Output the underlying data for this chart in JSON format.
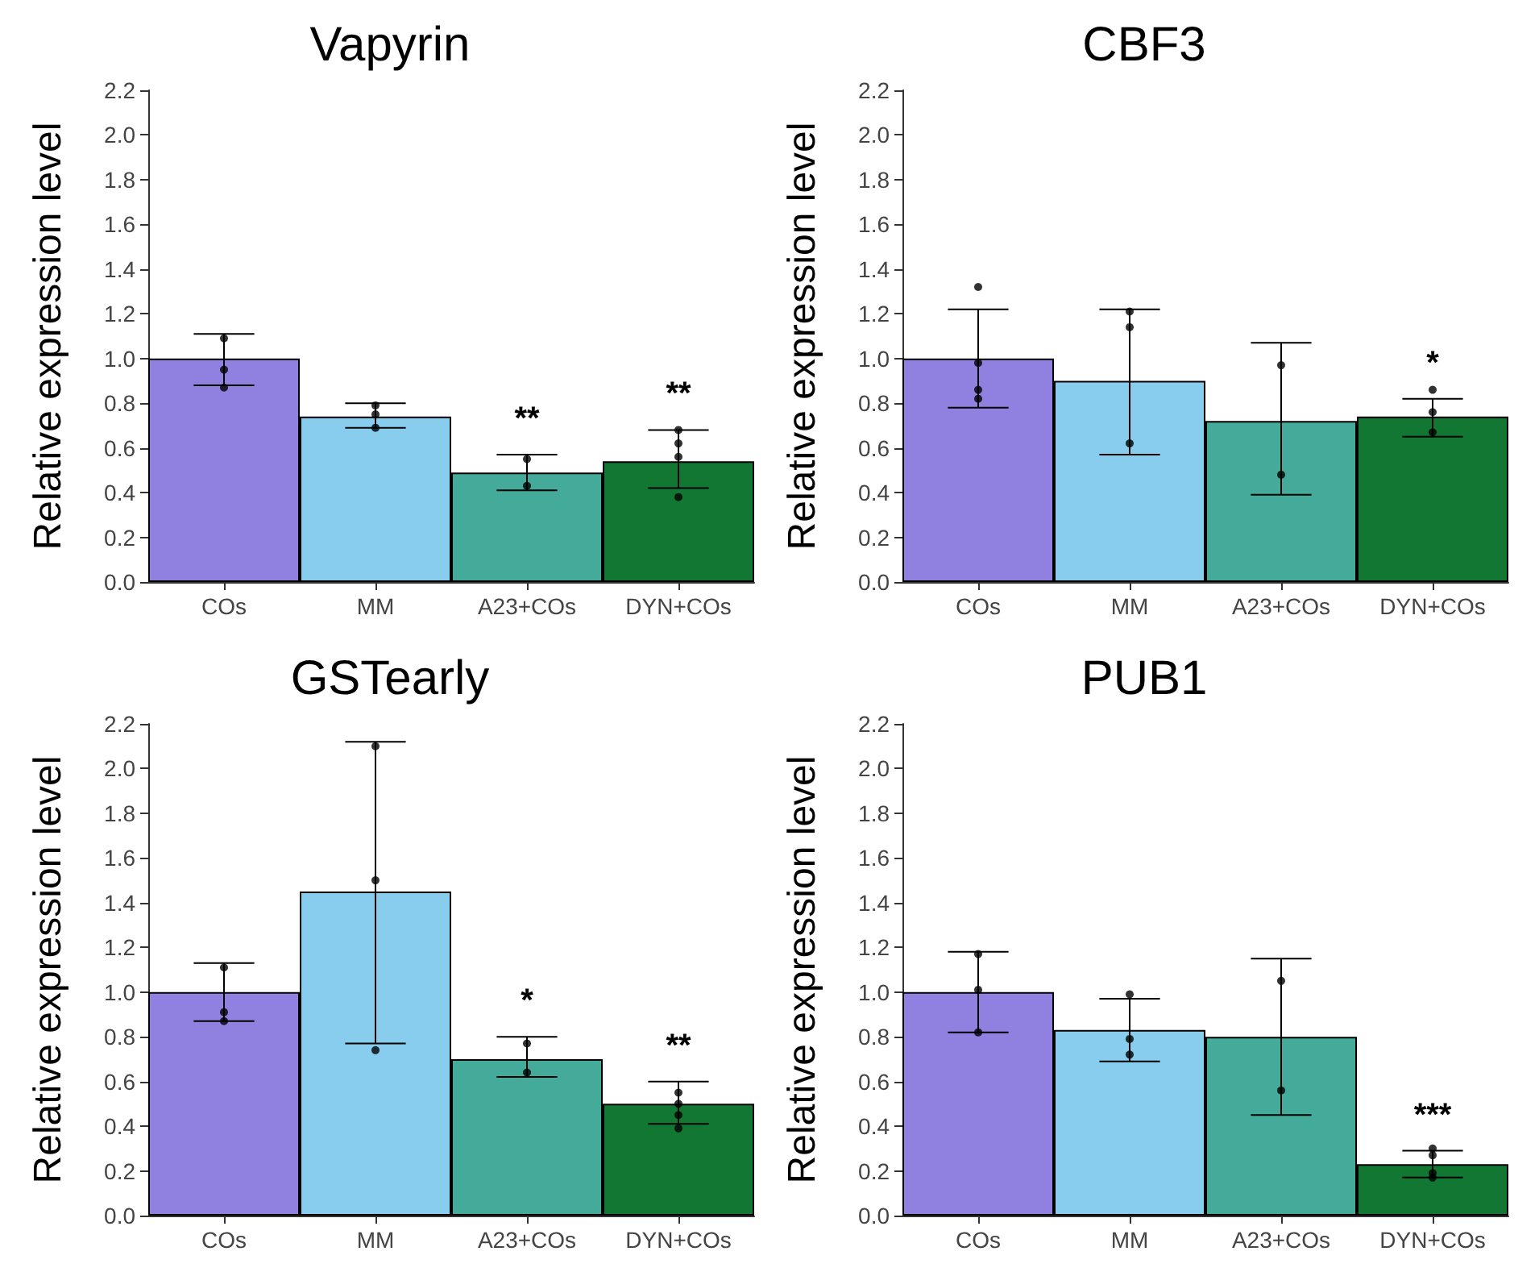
{
  "chart_data": [
    {
      "type": "bar",
      "title": "Vapyrin",
      "ylabel": "Relative expression level",
      "categories": [
        "COs",
        "MM",
        "A23+COs",
        "DYN+COs"
      ],
      "ylim": [
        0,
        2.2
      ],
      "yticks": [
        {
          "value": 0,
          "label": "0.0"
        },
        0.2,
        0.4,
        0.6,
        0.8,
        {
          "value": 1,
          "label": "1.0"
        },
        1.2,
        1.4,
        1.6,
        1.8,
        {
          "value": 2,
          "label": "2.0"
        },
        2.2
      ],
      "grid": false,
      "marker": "circle",
      "series": [
        {
          "values": [
            1.0,
            0.74,
            0.49,
            0.54
          ],
          "colors": [
            "#9080e0",
            "#88ccee",
            "#44aa99",
            "#117733"
          ],
          "errors": [
            [
              0.88,
              1.11
            ],
            [
              0.69,
              0.8
            ],
            [
              0.41,
              0.57
            ],
            [
              0.42,
              0.68
            ]
          ],
          "value_labels": [
            null,
            null,
            "**",
            "**"
          ]
        },
        {
          "type": "scatter",
          "color": "#000000",
          "x": [
            "COs",
            "COs",
            "COs",
            "MM",
            "MM",
            "MM",
            "A23+COs",
            "A23+COs",
            "DYN+COs",
            "DYN+COs",
            "DYN+COs",
            "DYN+COs"
          ],
          "values": [
            1.09,
            0.95,
            0.87,
            0.79,
            0.75,
            0.69,
            0.55,
            0.43,
            0.68,
            0.62,
            0.56,
            0.38
          ]
        }
      ]
    },
    {
      "type": "bar",
      "title": "CBF3",
      "ylabel": "Relative expression level",
      "categories": [
        "COs",
        "MM",
        "A23+COs",
        "DYN+COs"
      ],
      "ylim": [
        0,
        2.2
      ],
      "yticks": [
        {
          "value": 0,
          "label": "0.0"
        },
        0.2,
        0.4,
        0.6,
        0.8,
        {
          "value": 1,
          "label": "1.0"
        },
        1.2,
        1.4,
        1.6,
        1.8,
        {
          "value": 2,
          "label": "2.0"
        },
        2.2
      ],
      "grid": false,
      "marker": "circle",
      "series": [
        {
          "values": [
            1.0,
            0.9,
            0.72,
            0.74
          ],
          "colors": [
            "#9080e0",
            "#88ccee",
            "#44aa99",
            "#117733"
          ],
          "errors": [
            [
              0.78,
              1.22
            ],
            [
              0.57,
              1.22
            ],
            [
              0.39,
              1.07
            ],
            [
              0.65,
              0.82
            ]
          ],
          "value_labels": [
            null,
            null,
            null,
            "*"
          ]
        },
        {
          "type": "scatter",
          "color": "#000000",
          "x": [
            "COs",
            "COs",
            "COs",
            "COs",
            "MM",
            "MM",
            "MM",
            "A23+COs",
            "A23+COs",
            "DYN+COs",
            "DYN+COs",
            "DYN+COs"
          ],
          "values": [
            1.32,
            0.98,
            0.86,
            0.82,
            1.21,
            1.14,
            0.62,
            0.97,
            0.48,
            0.86,
            0.76,
            0.67
          ]
        }
      ]
    },
    {
      "type": "bar",
      "title": "GSTearly",
      "ylabel": "Relative expression level",
      "categories": [
        "COs",
        "MM",
        "A23+COs",
        "DYN+COs"
      ],
      "ylim": [
        0,
        2.2
      ],
      "yticks": [
        {
          "value": 0,
          "label": "0.0"
        },
        0.2,
        0.4,
        0.6,
        0.8,
        {
          "value": 1,
          "label": "1.0"
        },
        1.2,
        1.4,
        1.6,
        1.8,
        {
          "value": 2,
          "label": "2.0"
        },
        2.2
      ],
      "grid": false,
      "marker": "circle",
      "series": [
        {
          "values": [
            1.0,
            1.45,
            0.7,
            0.5
          ],
          "colors": [
            "#9080e0",
            "#88ccee",
            "#44aa99",
            "#117733"
          ],
          "errors": [
            [
              0.87,
              1.13
            ],
            [
              0.77,
              2.12
            ],
            [
              0.62,
              0.8
            ],
            [
              0.41,
              0.6
            ]
          ],
          "value_labels": [
            null,
            null,
            "*",
            "**"
          ]
        },
        {
          "type": "scatter",
          "color": "#000000",
          "x": [
            "COs",
            "COs",
            "COs",
            "MM",
            "MM",
            "MM",
            "A23+COs",
            "A23+COs",
            "DYN+COs",
            "DYN+COs",
            "DYN+COs",
            "DYN+COs"
          ],
          "values": [
            1.11,
            0.91,
            0.87,
            2.1,
            1.5,
            0.74,
            0.77,
            0.64,
            0.55,
            0.5,
            0.45,
            0.39
          ]
        }
      ]
    },
    {
      "type": "bar",
      "title": "PUB1",
      "ylabel": "Relative expression level",
      "categories": [
        "COs",
        "MM",
        "A23+COs",
        "DYN+COs"
      ],
      "ylim": [
        0,
        2.2
      ],
      "yticks": [
        {
          "value": 0,
          "label": "0.0"
        },
        0.2,
        0.4,
        0.6,
        0.8,
        {
          "value": 1,
          "label": "1.0"
        },
        1.2,
        1.4,
        1.6,
        1.8,
        {
          "value": 2,
          "label": "2.0"
        },
        2.2
      ],
      "grid": false,
      "marker": "circle",
      "series": [
        {
          "values": [
            1.0,
            0.83,
            0.8,
            0.23
          ],
          "colors": [
            "#9080e0",
            "#88ccee",
            "#44aa99",
            "#117733"
          ],
          "errors": [
            [
              0.82,
              1.18
            ],
            [
              0.69,
              0.97
            ],
            [
              0.45,
              1.15
            ],
            [
              0.17,
              0.29
            ]
          ],
          "value_labels": [
            null,
            null,
            null,
            "***"
          ]
        },
        {
          "type": "scatter",
          "color": "#000000",
          "x": [
            "COs",
            "COs",
            "COs",
            "MM",
            "MM",
            "MM",
            "A23+COs",
            "A23+COs",
            "DYN+COs",
            "DYN+COs",
            "DYN+COs",
            "DYN+COs"
          ],
          "values": [
            1.17,
            1.01,
            0.82,
            0.99,
            0.79,
            0.72,
            1.05,
            0.56,
            0.3,
            0.27,
            0.19,
            0.17
          ]
        }
      ]
    }
  ]
}
